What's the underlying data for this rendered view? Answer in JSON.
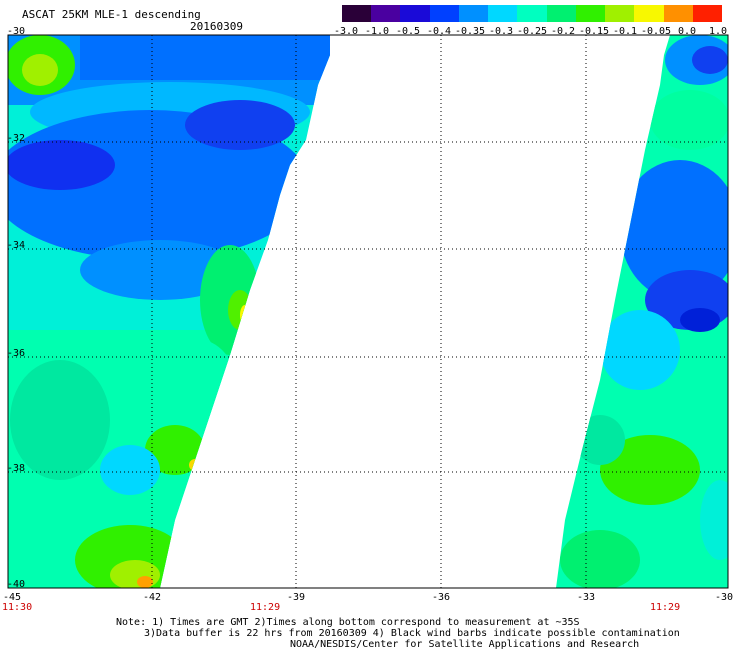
{
  "header": {
    "title": "ASCAT 25KM MLE-1 descending",
    "date": "20160309"
  },
  "colorbar": {
    "labels": [
      "-3.0",
      "-1.0",
      "-0.5",
      "-0.4",
      "-0.35",
      "-0.3",
      "-0.25",
      "-0.2",
      "-0.15",
      "-0.1",
      "-0.05",
      "0.0",
      "1.0"
    ],
    "colors": [
      "#2a0038",
      "#4a00a0",
      "#1a0ad8",
      "#0040ff",
      "#0090ff",
      "#00d8ff",
      "#00ffc0",
      "#00f070",
      "#30f000",
      "#a0f000",
      "#f8f800",
      "#ff9000",
      "#ff2000"
    ]
  },
  "axes": {
    "lat_labels": [
      "-30",
      "-32",
      "-34",
      "-36",
      "-38",
      "-40"
    ],
    "lon_labels": [
      "-45",
      "-42",
      "-39",
      "-36",
      "-33",
      "-30"
    ]
  },
  "times": {
    "left_start": "11:30",
    "left_mid": "11:29",
    "right_mid": "11:29"
  },
  "notes": {
    "line1": "Note: 1) Times are GMT 2)Times along bottom correspond to measurement at ~35S",
    "line2": "3)Data buffer is 22 hrs from 20160309 4) Black wind barbs indicate possible contamination",
    "line3": "NOAA/NESDIS/Center for Satellite Applications and Research"
  }
}
